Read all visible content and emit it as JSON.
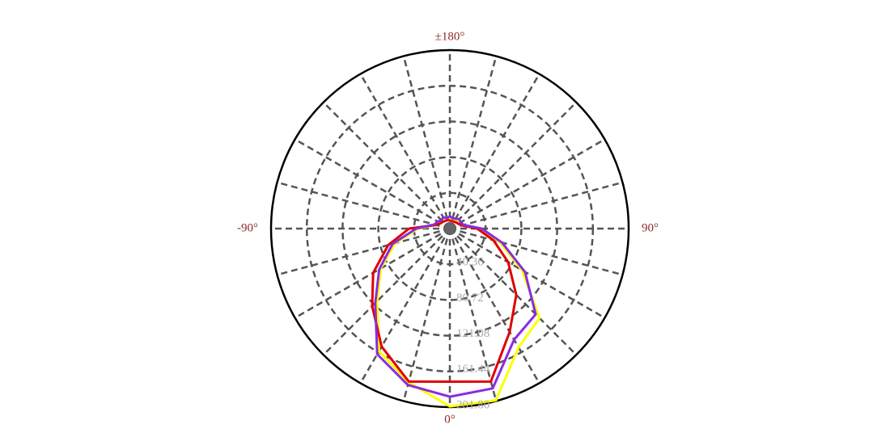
{
  "chart_data": {
    "type": "polar",
    "theta": [
      -180,
      -165,
      -150,
      -135,
      -120,
      -105,
      -90,
      -75,
      -60,
      -45,
      -30,
      -15,
      0,
      15,
      30,
      45,
      60,
      75,
      90,
      105,
      120,
      135,
      150,
      165,
      180
    ],
    "series": [
      {
        "color": "#ffff00",
        "values": [
          12,
          11,
          12,
          12,
          14,
          16,
          36,
          64,
          90,
          116,
          160,
          180,
          201,
          201,
          155,
          143,
          94,
          58,
          34,
          15,
          13,
          12,
          11,
          12,
          12
        ]
      },
      {
        "color": "#e00000",
        "values": [
          9,
          10,
          10,
          11,
          12,
          16,
          46,
          72,
          100,
          124,
          154,
          179,
          173,
          179,
          135,
          106,
          76,
          51,
          31,
          14,
          11,
          10,
          9,
          9,
          9
        ]
      },
      {
        "color": "#8a2be2",
        "values": [
          14,
          12,
          15,
          13,
          16,
          18,
          38,
          67,
          92,
          119,
          164,
          183,
          190,
          187,
          145,
          137,
          98,
          61,
          36,
          16,
          14,
          15,
          13,
          12,
          14
        ]
      }
    ],
    "rlim": [
      0,
      201.8
    ],
    "rticks": [
      40.36,
      80.72,
      121.08,
      161.44,
      {
        "value": 201.8,
        "label": "201.80"
      }
    ],
    "thetaticks": [
      {
        "value": 180,
        "label": "±180°"
      },
      {
        "value": -90,
        "label": "-90°"
      },
      {
        "value": 90,
        "label": "90°"
      },
      {
        "value": 0,
        "label": "0°"
      }
    ],
    "thetagrid": [
      -165,
      -150,
      -135,
      -120,
      -105,
      -90,
      -75,
      -60,
      -45,
      -30,
      -15,
      0,
      15,
      30,
      45,
      60,
      75,
      90,
      105,
      120,
      135,
      150,
      165,
      180
    ],
    "grid": true
  }
}
